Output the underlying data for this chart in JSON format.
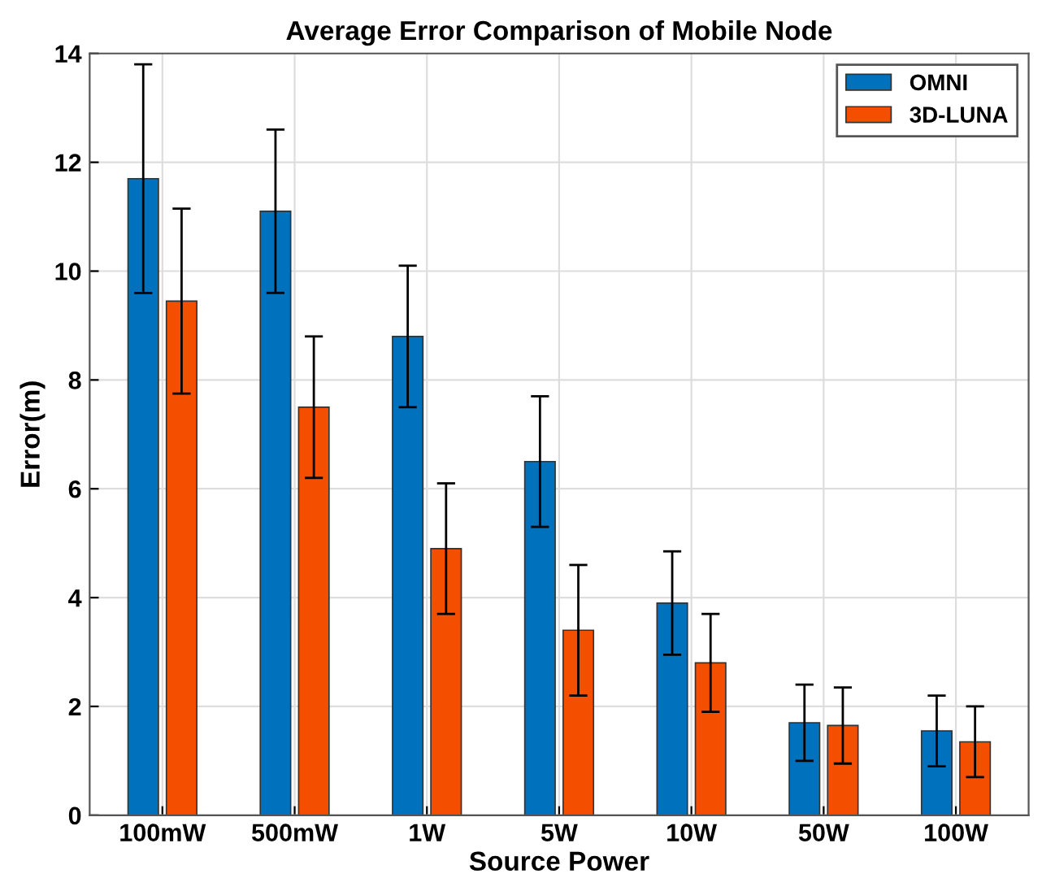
{
  "chart_data": {
    "type": "bar",
    "title": "Average Error Comparison of Mobile Node",
    "xlabel": "Source Power",
    "ylabel": "Error(m)",
    "categories": [
      "100mW",
      "500mW",
      "1W",
      "5W",
      "10W",
      "50W",
      "100W"
    ],
    "series": [
      {
        "name": "OMNI",
        "color": "#0072bd",
        "values": [
          11.7,
          11.1,
          8.8,
          6.5,
          3.9,
          1.7,
          1.55
        ],
        "errors": [
          2.1,
          1.5,
          1.3,
          1.2,
          0.95,
          0.7,
          0.65
        ]
      },
      {
        "name": "3D-LUNA",
        "color": "#f44f00",
        "values": [
          9.45,
          7.5,
          4.9,
          3.4,
          2.8,
          1.65,
          1.35
        ],
        "errors": [
          1.7,
          1.3,
          1.2,
          1.2,
          0.9,
          0.7,
          0.65
        ]
      }
    ],
    "ylim": [
      0,
      14
    ],
    "yticks": [
      0,
      2,
      4,
      6,
      8,
      10,
      12,
      14
    ],
    "grid": true,
    "legend": "top right"
  }
}
